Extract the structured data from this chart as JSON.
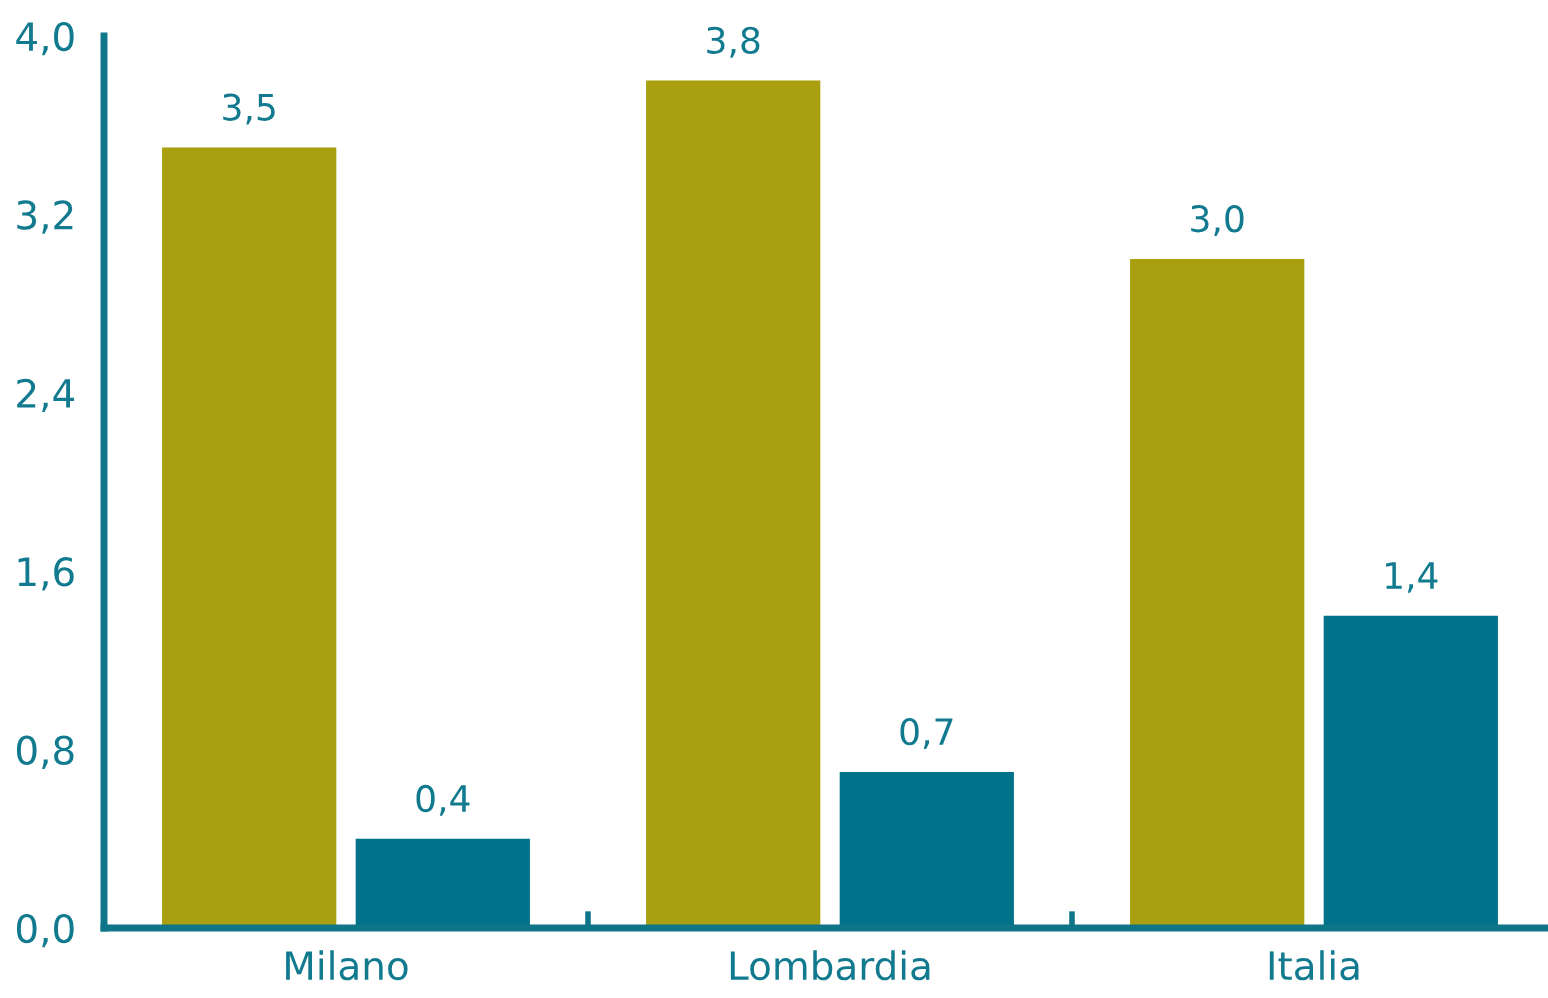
{
  "chart_data": {
    "type": "bar",
    "categories": [
      "Milano",
      "Lombardia",
      "Italia"
    ],
    "series": [
      {
        "color": "#a8a00f",
        "values": [
          3.5,
          3.8,
          3.0
        ],
        "value_labels": [
          "3,5",
          "3,8",
          "3,0"
        ]
      },
      {
        "color": "#00738a",
        "values": [
          0.4,
          0.7,
          1.4
        ],
        "value_labels": [
          "0,4",
          "0,7",
          "1,4"
        ]
      }
    ],
    "ylim": [
      0,
      4
    ],
    "yticks": [
      {
        "value": 0,
        "label": "0,0"
      },
      {
        "value": 0.8,
        "label": "0,8"
      },
      {
        "value": 1.6,
        "label": "1,6"
      },
      {
        "value": 2.4,
        "label": "2,4"
      },
      {
        "value": 3.2,
        "label": "3,2"
      },
      {
        "value": 4,
        "label": "4,0"
      }
    ],
    "grid": false,
    "legend": false
  }
}
